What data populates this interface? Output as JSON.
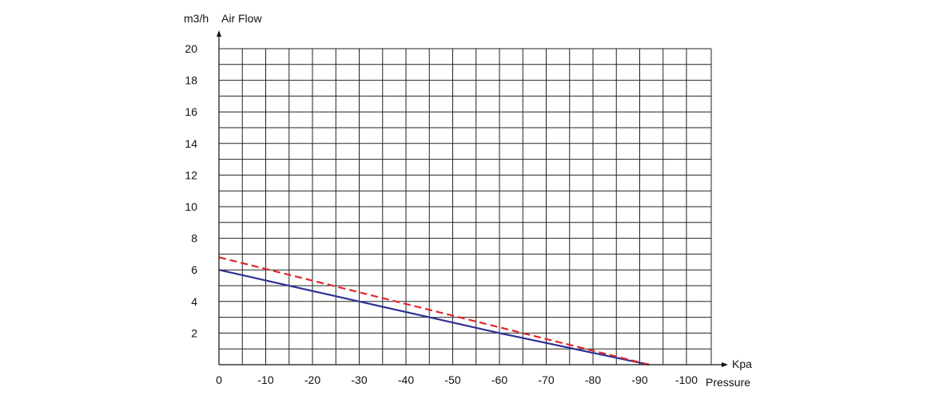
{
  "chart_data": {
    "type": "line",
    "y_unit_label": "m3/h",
    "ylabel": "Air Flow",
    "x_unit_label": "Kpa",
    "xlabel": "Pressure",
    "x_ticks": [
      0,
      -10,
      -20,
      -30,
      -40,
      -50,
      -60,
      -70,
      -80,
      -90,
      -100
    ],
    "y_ticks": [
      2,
      4,
      6,
      8,
      10,
      12,
      14,
      16,
      18,
      20
    ],
    "xlim": [
      0,
      -105
    ],
    "ylim": [
      0,
      20
    ],
    "grid": true,
    "series": [
      {
        "style": "solid",
        "color": "#2e3192",
        "x": [
          0,
          -30,
          -45,
          -60,
          -92
        ],
        "y": [
          6.0,
          4.0,
          3.0,
          2.0,
          0.0
        ]
      },
      {
        "style": "dashed",
        "color": "#e0262b",
        "x": [
          0,
          -92
        ],
        "y": [
          6.8,
          0.0
        ]
      }
    ]
  }
}
